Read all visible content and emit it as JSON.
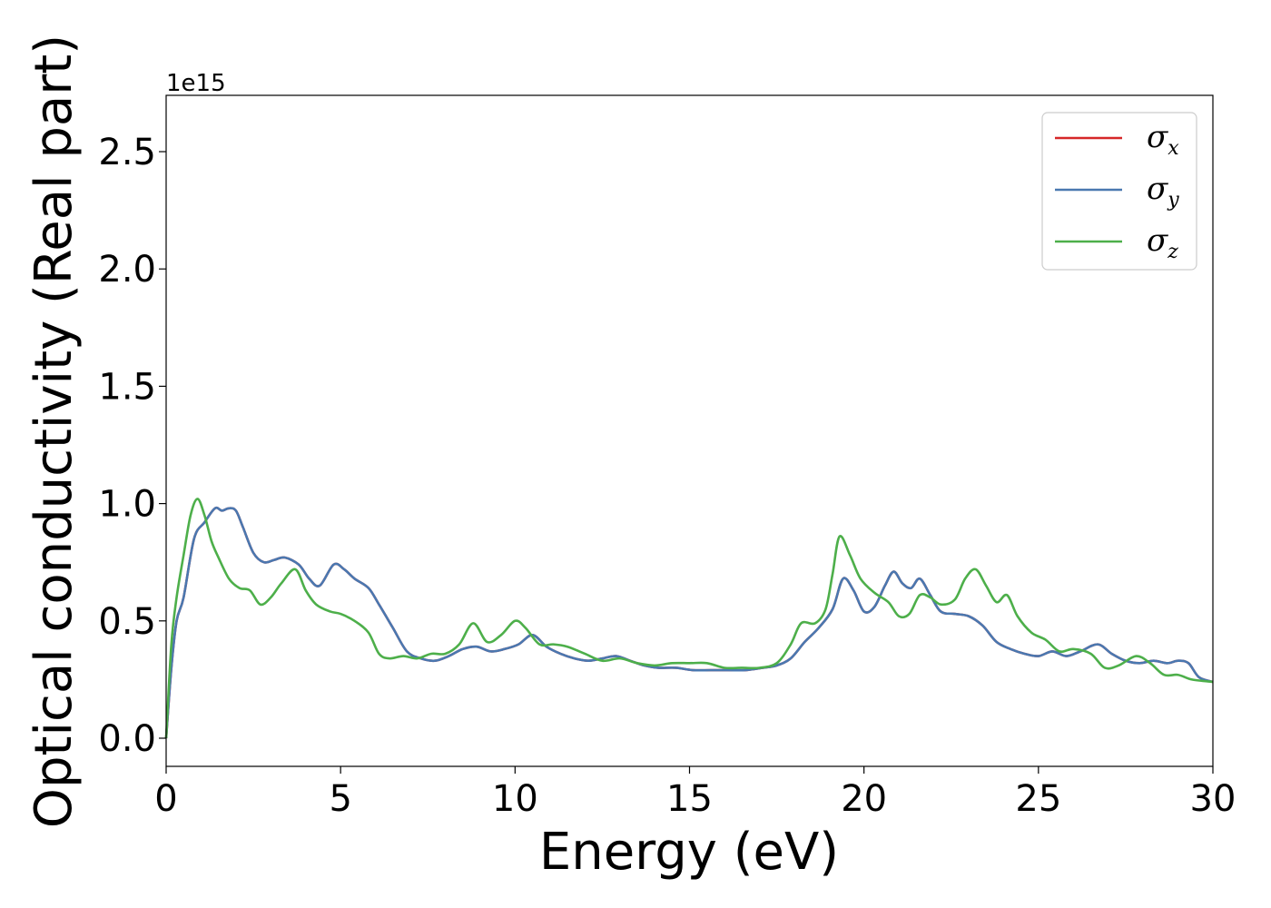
{
  "chart_data": {
    "type": "line",
    "title": "",
    "xlabel": "Energy (eV)",
    "ylabel": "Optical conductivity (Real part)",
    "y_offset_label": "1e15",
    "xlim": [
      0,
      30
    ],
    "ylim": [
      -0.12,
      2.74
    ],
    "x_ticks": [
      0,
      5,
      10,
      15,
      20,
      25,
      30
    ],
    "x_tick_labels": [
      "0",
      "5",
      "10",
      "15",
      "20",
      "25",
      "30"
    ],
    "y_ticks": [
      0.0,
      0.5,
      1.0,
      1.5,
      2.0,
      2.5
    ],
    "y_tick_labels": [
      "0.0",
      "0.5",
      "1.0",
      "1.5",
      "2.0",
      "2.5"
    ],
    "grid": false,
    "legend_position": "top-right",
    "series": [
      {
        "name": "σx",
        "label_base": "σ",
        "label_sub": "x",
        "color": "#d62728",
        "x": [
          0,
          0.15,
          0.3,
          0.5,
          0.8,
          1.1,
          1.4,
          1.6,
          1.8,
          2.0,
          2.2,
          2.5,
          2.8,
          3.1,
          3.4,
          3.8,
          4.1,
          4.4,
          4.8,
          5.1,
          5.4,
          5.8,
          6.1,
          6.5,
          6.9,
          7.3,
          7.7,
          8.1,
          8.5,
          8.9,
          9.3,
          9.7,
          10.1,
          10.5,
          10.9,
          11.3,
          11.7,
          12.1,
          12.5,
          12.9,
          13.3,
          13.7,
          14.1,
          14.6,
          15.1,
          15.6,
          16.1,
          16.6,
          17.1,
          17.5,
          17.9,
          18.3,
          18.7,
          19.1,
          19.4,
          19.7,
          20.0,
          20.3,
          20.6,
          20.85,
          21.1,
          21.35,
          21.6,
          21.9,
          22.2,
          22.6,
          23.0,
          23.4,
          23.8,
          24.2,
          24.6,
          25.0,
          25.4,
          25.8,
          26.2,
          26.7,
          27.1,
          27.5,
          27.9,
          28.3,
          28.7,
          29.0,
          29.3,
          29.6,
          30.0
        ],
        "y": [
          0.0,
          0.3,
          0.5,
          0.6,
          0.85,
          0.92,
          0.98,
          0.97,
          0.98,
          0.97,
          0.9,
          0.79,
          0.75,
          0.76,
          0.77,
          0.74,
          0.68,
          0.65,
          0.74,
          0.72,
          0.68,
          0.64,
          0.57,
          0.47,
          0.37,
          0.34,
          0.33,
          0.35,
          0.38,
          0.39,
          0.37,
          0.38,
          0.4,
          0.44,
          0.39,
          0.36,
          0.34,
          0.33,
          0.34,
          0.35,
          0.33,
          0.31,
          0.3,
          0.3,
          0.29,
          0.29,
          0.29,
          0.29,
          0.3,
          0.31,
          0.34,
          0.41,
          0.47,
          0.55,
          0.68,
          0.63,
          0.54,
          0.56,
          0.65,
          0.71,
          0.66,
          0.64,
          0.68,
          0.61,
          0.54,
          0.53,
          0.52,
          0.48,
          0.41,
          0.38,
          0.36,
          0.35,
          0.37,
          0.35,
          0.37,
          0.4,
          0.36,
          0.33,
          0.32,
          0.33,
          0.32,
          0.33,
          0.32,
          0.26,
          0.24
        ]
      },
      {
        "name": "σy",
        "label_base": "σ",
        "label_sub": "y",
        "color": "#4a78b0",
        "x": [
          0,
          0.15,
          0.3,
          0.5,
          0.8,
          1.1,
          1.4,
          1.6,
          1.8,
          2.0,
          2.2,
          2.5,
          2.8,
          3.1,
          3.4,
          3.8,
          4.1,
          4.4,
          4.8,
          5.1,
          5.4,
          5.8,
          6.1,
          6.5,
          6.9,
          7.3,
          7.7,
          8.1,
          8.5,
          8.9,
          9.3,
          9.7,
          10.1,
          10.5,
          10.9,
          11.3,
          11.7,
          12.1,
          12.5,
          12.9,
          13.3,
          13.7,
          14.1,
          14.6,
          15.1,
          15.6,
          16.1,
          16.6,
          17.1,
          17.5,
          17.9,
          18.3,
          18.7,
          19.1,
          19.4,
          19.7,
          20.0,
          20.3,
          20.6,
          20.85,
          21.1,
          21.35,
          21.6,
          21.9,
          22.2,
          22.6,
          23.0,
          23.4,
          23.8,
          24.2,
          24.6,
          25.0,
          25.4,
          25.8,
          26.2,
          26.7,
          27.1,
          27.5,
          27.9,
          28.3,
          28.7,
          29.0,
          29.3,
          29.6,
          30.0
        ],
        "y": [
          0.0,
          0.3,
          0.5,
          0.6,
          0.85,
          0.92,
          0.98,
          0.97,
          0.98,
          0.97,
          0.9,
          0.79,
          0.75,
          0.76,
          0.77,
          0.74,
          0.68,
          0.65,
          0.74,
          0.72,
          0.68,
          0.64,
          0.57,
          0.47,
          0.37,
          0.34,
          0.33,
          0.35,
          0.38,
          0.39,
          0.37,
          0.38,
          0.4,
          0.44,
          0.39,
          0.36,
          0.34,
          0.33,
          0.34,
          0.35,
          0.33,
          0.31,
          0.3,
          0.3,
          0.29,
          0.29,
          0.29,
          0.29,
          0.3,
          0.31,
          0.34,
          0.41,
          0.47,
          0.55,
          0.68,
          0.63,
          0.54,
          0.56,
          0.65,
          0.71,
          0.66,
          0.64,
          0.68,
          0.61,
          0.54,
          0.53,
          0.52,
          0.48,
          0.41,
          0.38,
          0.36,
          0.35,
          0.37,
          0.35,
          0.37,
          0.4,
          0.36,
          0.33,
          0.32,
          0.33,
          0.32,
          0.33,
          0.32,
          0.26,
          0.24
        ]
      },
      {
        "name": "σz",
        "label_base": "σ",
        "label_sub": "z",
        "color": "#4daf4a",
        "x": [
          0,
          0.15,
          0.3,
          0.5,
          0.7,
          0.9,
          1.1,
          1.3,
          1.5,
          1.8,
          2.1,
          2.4,
          2.7,
          3.0,
          3.3,
          3.7,
          4.0,
          4.3,
          4.7,
          5.0,
          5.4,
          5.8,
          6.1,
          6.4,
          6.8,
          7.2,
          7.6,
          8.0,
          8.4,
          8.8,
          9.2,
          9.6,
          10.0,
          10.3,
          10.7,
          11.1,
          11.5,
          12.0,
          12.5,
          13.0,
          13.5,
          14.0,
          14.5,
          15.0,
          15.5,
          16.0,
          16.5,
          17.0,
          17.5,
          17.9,
          18.2,
          18.6,
          18.9,
          19.1,
          19.3,
          19.6,
          19.9,
          20.3,
          20.7,
          21.0,
          21.3,
          21.6,
          21.9,
          22.2,
          22.6,
          22.9,
          23.2,
          23.5,
          23.8,
          24.1,
          24.4,
          24.8,
          25.2,
          25.6,
          26.0,
          26.5,
          26.9,
          27.3,
          27.8,
          28.2,
          28.6,
          29.0,
          29.4,
          30.0
        ],
        "y": [
          0.0,
          0.4,
          0.6,
          0.78,
          0.95,
          1.02,
          0.95,
          0.84,
          0.77,
          0.68,
          0.64,
          0.63,
          0.57,
          0.6,
          0.66,
          0.72,
          0.63,
          0.57,
          0.54,
          0.53,
          0.5,
          0.45,
          0.36,
          0.34,
          0.35,
          0.34,
          0.36,
          0.36,
          0.4,
          0.49,
          0.41,
          0.44,
          0.5,
          0.47,
          0.4,
          0.4,
          0.39,
          0.36,
          0.33,
          0.34,
          0.32,
          0.31,
          0.32,
          0.32,
          0.32,
          0.3,
          0.3,
          0.3,
          0.32,
          0.4,
          0.49,
          0.49,
          0.55,
          0.7,
          0.86,
          0.78,
          0.68,
          0.62,
          0.58,
          0.52,
          0.53,
          0.61,
          0.6,
          0.57,
          0.59,
          0.68,
          0.72,
          0.65,
          0.58,
          0.61,
          0.52,
          0.45,
          0.42,
          0.37,
          0.38,
          0.36,
          0.3,
          0.31,
          0.35,
          0.32,
          0.27,
          0.27,
          0.25,
          0.24
        ]
      }
    ]
  }
}
